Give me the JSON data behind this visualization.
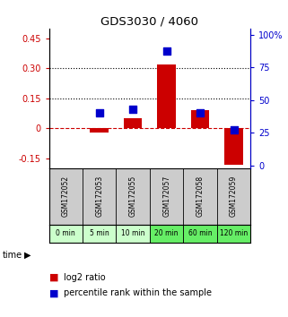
{
  "title": "GDS3030 / 4060",
  "samples": [
    "GSM172052",
    "GSM172053",
    "GSM172055",
    "GSM172057",
    "GSM172058",
    "GSM172059"
  ],
  "time_labels": [
    "0 min",
    "5 min",
    "10 min",
    "20 min",
    "60 min",
    "120 min"
  ],
  "time_colors": [
    "#ccffcc",
    "#ccffcc",
    "#ccffcc",
    "#66ee66",
    "#66ee66",
    "#66ee66"
  ],
  "log2_ratio": [
    0.0,
    -0.02,
    0.05,
    0.32,
    0.09,
    -0.18
  ],
  "percentile_rank": [
    null,
    40,
    43,
    88,
    40,
    27
  ],
  "ylim_left": [
    -0.2,
    0.5
  ],
  "ylim_right": [
    -2.38,
    105
  ],
  "yticks_left": [
    -0.15,
    0.0,
    0.15,
    0.3,
    0.45
  ],
  "ytick_labels_left": [
    "-0.15",
    "0",
    "0.15",
    "0.30",
    "0.45"
  ],
  "yticks_right": [
    0,
    25,
    50,
    75,
    100
  ],
  "ytick_labels_right": [
    "0",
    "25",
    "50",
    "75",
    "100%"
  ],
  "hlines_dotted": [
    0.15,
    0.3
  ],
  "hline_dash": 0.0,
  "bar_color": "#cc0000",
  "dot_color": "#0000cc",
  "bar_width": 0.55,
  "dot_size": 30,
  "bg_color_plot": "#ffffff",
  "bg_color_gsm": "#cccccc",
  "legend_log2_color": "#cc0000",
  "legend_pct_color": "#0000cc",
  "left_axis_color": "#cc0000",
  "right_axis_color": "#0000cc"
}
